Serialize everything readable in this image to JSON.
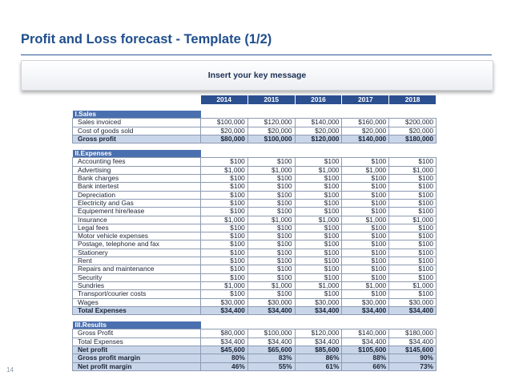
{
  "header": {
    "title": "Profit and Loss forecast - Template (1/2)",
    "key_message": "Insert your key message"
  },
  "years": [
    "2014",
    "2015",
    "2016",
    "2017",
    "2018"
  ],
  "sections": [
    {
      "title": "I.Sales",
      "rows": [
        {
          "label": "Sales invoiced",
          "values": [
            "$100,000",
            "$120,000",
            "$140,000",
            "$160,000",
            "$200,000"
          ],
          "bold": false
        },
        {
          "label": "Cost of goods sold",
          "values": [
            "$20,000",
            "$20,000",
            "$20,000",
            "$20,000",
            "$20,000"
          ],
          "bold": false
        },
        {
          "label": "Gross profit",
          "values": [
            "$80,000",
            "$100,000",
            "$120,000",
            "$140,000",
            "$180,000"
          ],
          "bold": true
        }
      ]
    },
    {
      "title": "II.Expenses",
      "rows": [
        {
          "label": "Accounting fees",
          "values": [
            "$100",
            "$100",
            "$100",
            "$100",
            "$100"
          ],
          "bold": false
        },
        {
          "label": "Advertising",
          "values": [
            "$1,000",
            "$1,000",
            "$1,000",
            "$1,000",
            "$1,000"
          ],
          "bold": false
        },
        {
          "label": "Bank charges",
          "values": [
            "$100",
            "$100",
            "$100",
            "$100",
            "$100"
          ],
          "bold": false
        },
        {
          "label": "Bank intertest",
          "values": [
            "$100",
            "$100",
            "$100",
            "$100",
            "$100"
          ],
          "bold": false
        },
        {
          "label": "Depreciation",
          "values": [
            "$100",
            "$100",
            "$100",
            "$100",
            "$100"
          ],
          "bold": false
        },
        {
          "label": "Electricity and Gas",
          "values": [
            "$100",
            "$100",
            "$100",
            "$100",
            "$100"
          ],
          "bold": false
        },
        {
          "label": "Equipement hire/lease",
          "values": [
            "$100",
            "$100",
            "$100",
            "$100",
            "$100"
          ],
          "bold": false
        },
        {
          "label": "Insurance",
          "values": [
            "$1,000",
            "$1,000",
            "$1,000",
            "$1,000",
            "$1,000"
          ],
          "bold": false
        },
        {
          "label": "Legal fees",
          "values": [
            "$100",
            "$100",
            "$100",
            "$100",
            "$100"
          ],
          "bold": false
        },
        {
          "label": "Motor vehicle expenses",
          "values": [
            "$100",
            "$100",
            "$100",
            "$100",
            "$100"
          ],
          "bold": false
        },
        {
          "label": "Postage, telephone and fax",
          "values": [
            "$100",
            "$100",
            "$100",
            "$100",
            "$100"
          ],
          "bold": false
        },
        {
          "label": "Stationery",
          "values": [
            "$100",
            "$100",
            "$100",
            "$100",
            "$100"
          ],
          "bold": false
        },
        {
          "label": "Rent",
          "values": [
            "$100",
            "$100",
            "$100",
            "$100",
            "$100"
          ],
          "bold": false
        },
        {
          "label": "Repairs and maintenance",
          "values": [
            "$100",
            "$100",
            "$100",
            "$100",
            "$100"
          ],
          "bold": false
        },
        {
          "label": "Security",
          "values": [
            "$100",
            "$100",
            "$100",
            "$100",
            "$100"
          ],
          "bold": false
        },
        {
          "label": "Sundries",
          "values": [
            "$1,000",
            "$1,000",
            "$1,000",
            "$1,000",
            "$1,000"
          ],
          "bold": false
        },
        {
          "label": "Transport/courier costs",
          "values": [
            "$100",
            "$100",
            "$100",
            "$100",
            "$100"
          ],
          "bold": false
        },
        {
          "label": "Wages",
          "values": [
            "$30,000",
            "$30,000",
            "$30,000",
            "$30,000",
            "$30,000"
          ],
          "bold": false
        },
        {
          "label": "Total Expenses",
          "values": [
            "$34,400",
            "$34,400",
            "$34,400",
            "$34,400",
            "$34,400"
          ],
          "bold": true
        }
      ]
    },
    {
      "title": "III.Results",
      "rows": [
        {
          "label": "Gross Profit",
          "values": [
            "$80,000",
            "$100,000",
            "$120,000",
            "$140,000",
            "$180,000"
          ],
          "bold": false
        },
        {
          "label": "Total Expenses",
          "values": [
            "$34,400",
            "$34,400",
            "$34,400",
            "$34,400",
            "$34,400"
          ],
          "bold": false
        },
        {
          "label": "Net profit",
          "values": [
            "$45,600",
            "$65,600",
            "$85,600",
            "$105,600",
            "$145,600"
          ],
          "bold": true
        },
        {
          "label": "Gross profit margin",
          "values": [
            "80%",
            "83%",
            "86%",
            "88%",
            "90%"
          ],
          "bold": true
        },
        {
          "label": "Net profit margin",
          "values": [
            "46%",
            "55%",
            "61%",
            "66%",
            "73%"
          ],
          "bold": true
        }
      ]
    }
  ],
  "footer": {
    "page_number": "14"
  },
  "colors": {
    "title": "#1f4e8c",
    "header_fill": "#2b4f8f",
    "section_fill": "#4a6fae",
    "bold_row_fill": "#c9d6ea",
    "grid": "#8c9bb3"
  }
}
